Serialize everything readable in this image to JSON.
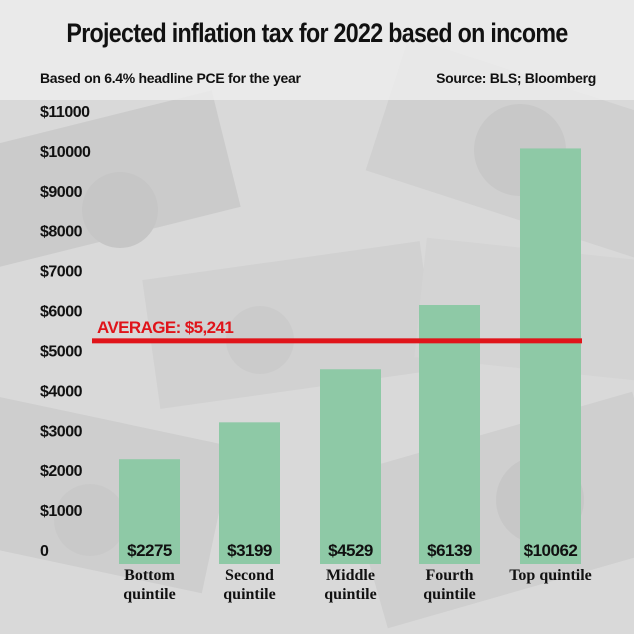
{
  "header": {
    "title": "Projected inflation tax for 2022 based on income",
    "subtitle": "Based on 6.4% headline PCE for the year",
    "source": "Source: BLS; Bloomberg"
  },
  "colors": {
    "bar": "#8ec9a6",
    "average_line": "#e0141a",
    "text": "#111111"
  },
  "chart_data": {
    "type": "bar",
    "title": "Projected inflation tax for 2022 based on income",
    "subtitle": "Based on 6.4% headline PCE for the year",
    "categories": [
      [
        "Bottom",
        "quintile"
      ],
      [
        "Second",
        "quintile"
      ],
      [
        "Middle",
        "quintile"
      ],
      [
        "Fourth",
        "quintile"
      ],
      [
        "Top quintile"
      ]
    ],
    "values": [
      2275,
      3199,
      4529,
      6139,
      10062
    ],
    "value_labels": [
      "$2275",
      "$3199",
      "$4529",
      "$6139",
      "$10062"
    ],
    "ylim": [
      0,
      11000
    ],
    "yticks": [
      0,
      1000,
      2000,
      3000,
      4000,
      5000,
      6000,
      7000,
      8000,
      9000,
      10000,
      11000
    ],
    "ytick_labels": [
      "0",
      "$1000",
      "$2000",
      "$3000",
      "$4000",
      "$5000",
      "$6000",
      "$7000",
      "$8000",
      "$9000",
      "$10000",
      "$11000"
    ],
    "average": {
      "value": 5241,
      "label": "AVERAGE: $5,241"
    },
    "grid": false,
    "legend": "none"
  }
}
